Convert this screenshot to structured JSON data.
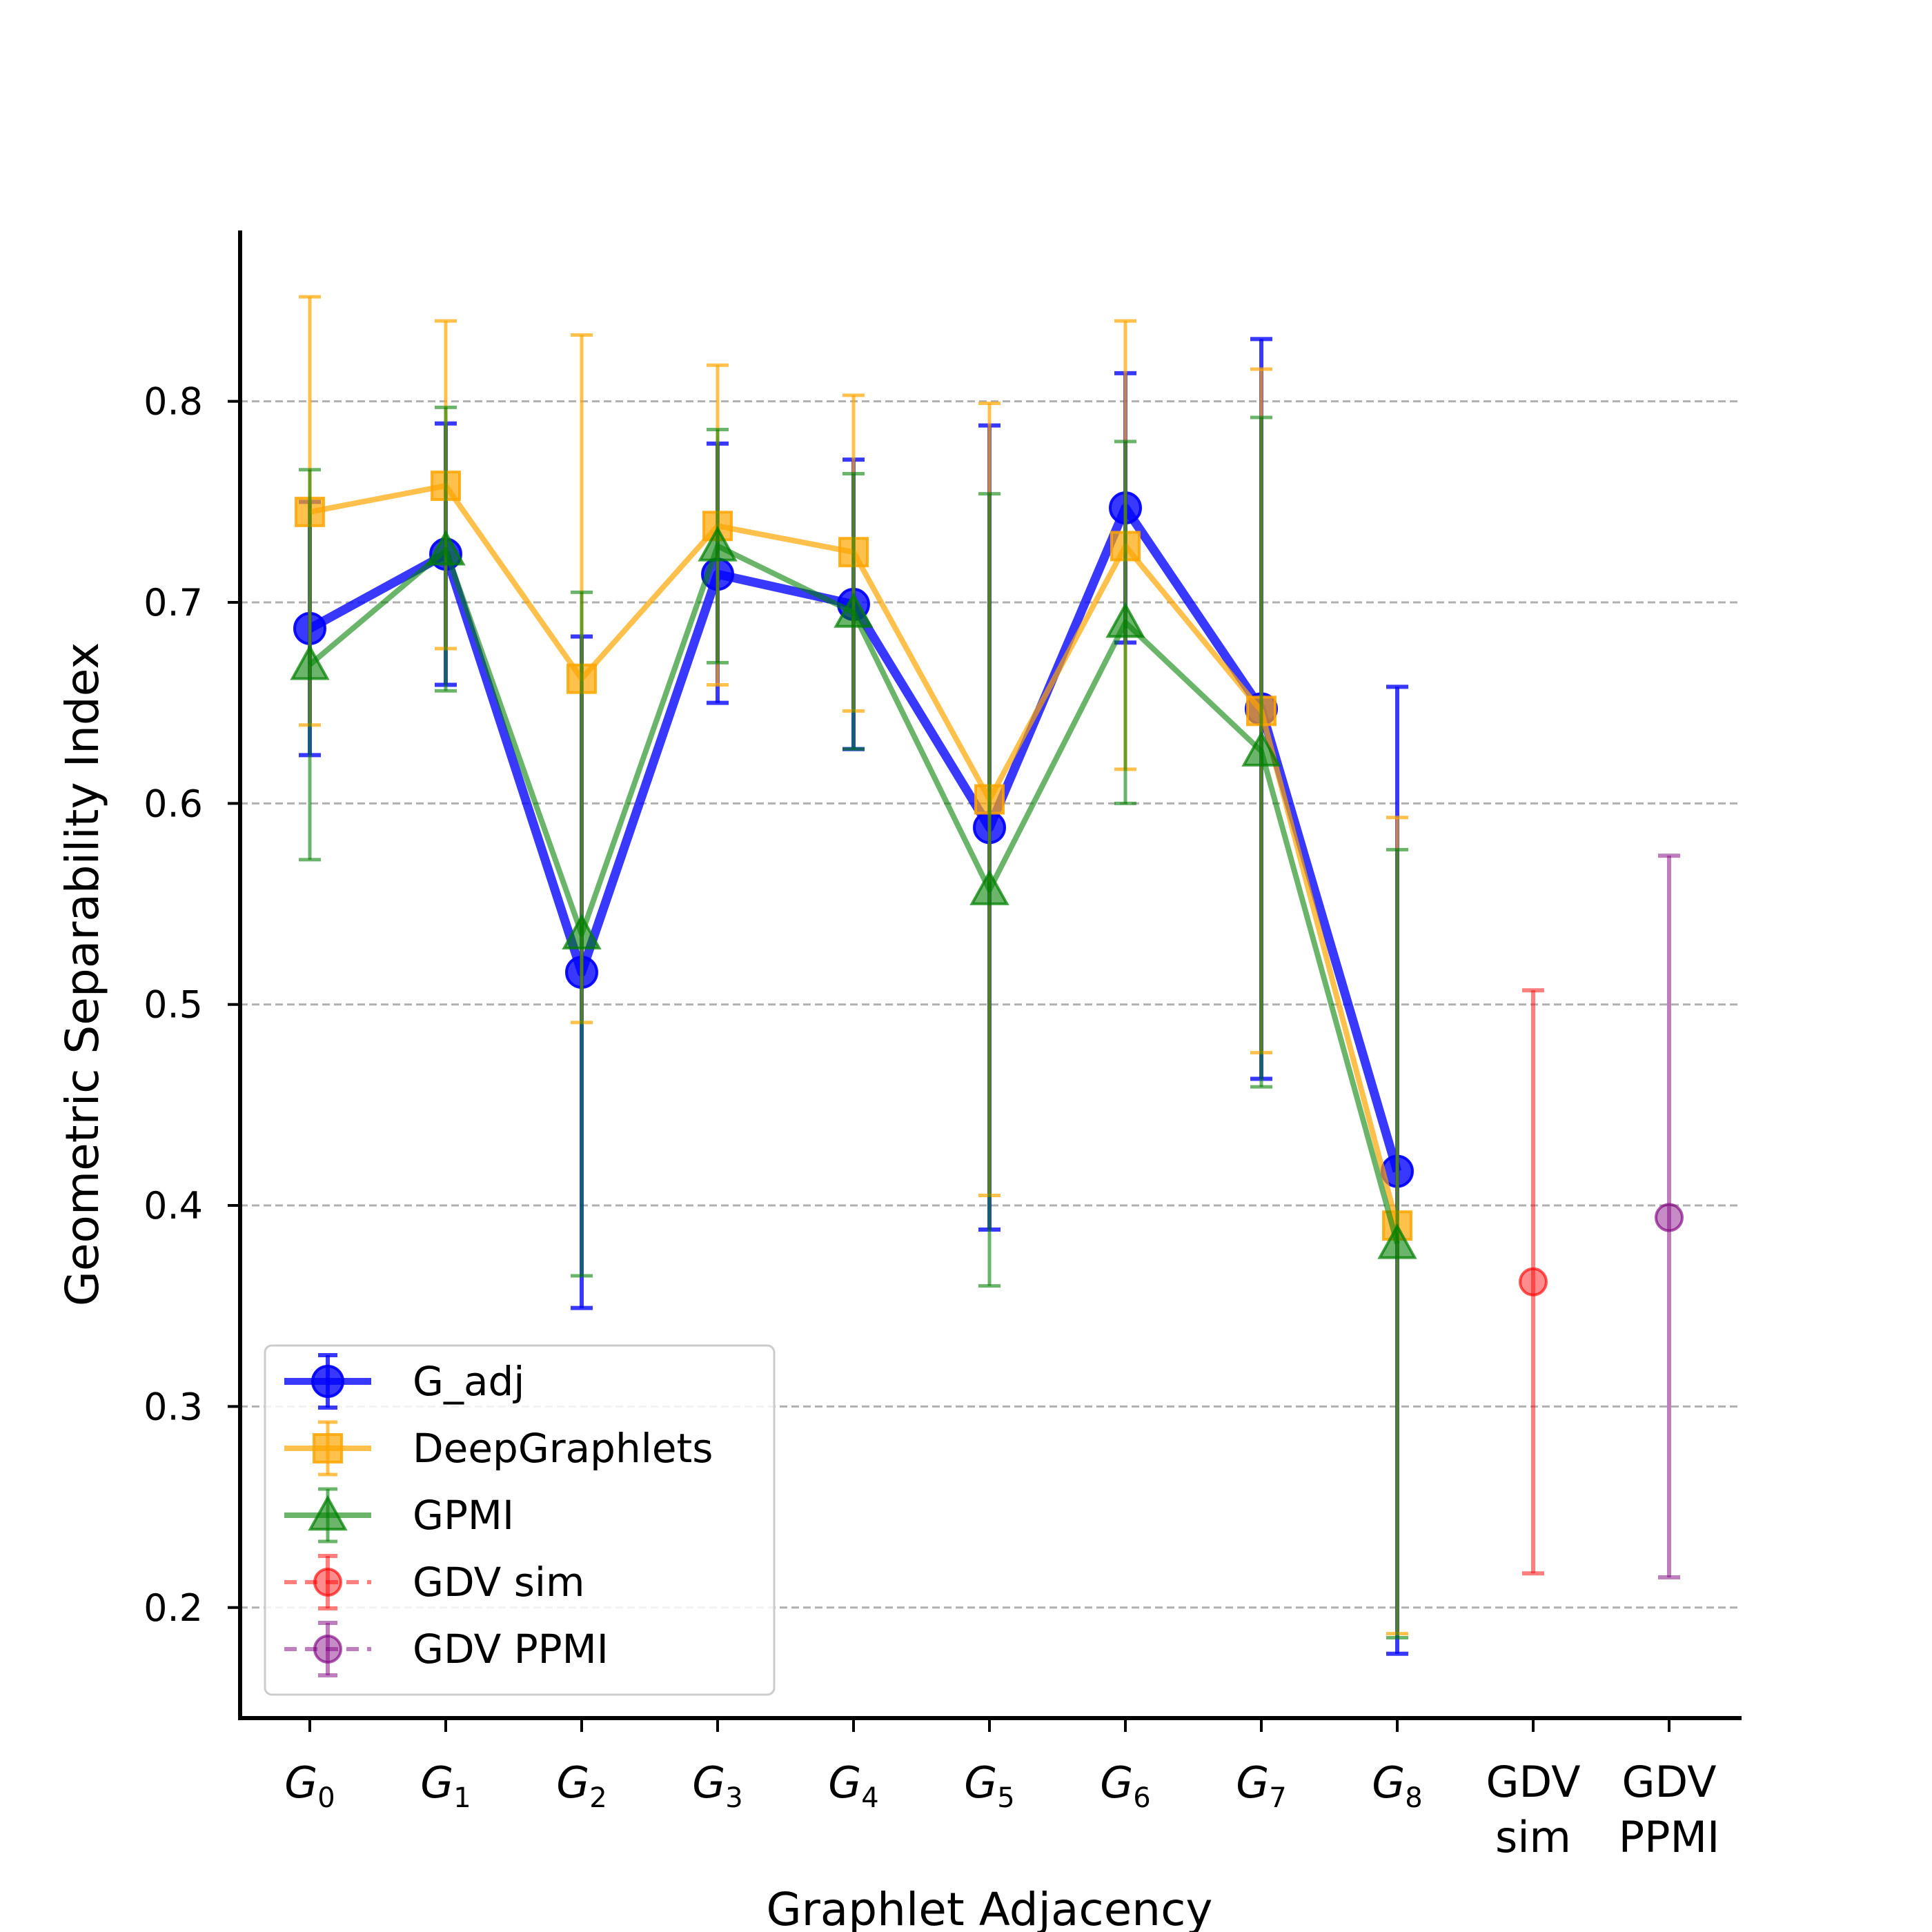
{
  "chart_data": {
    "type": "line",
    "xlabel": "Graphlet Adjacency",
    "ylabel": "Geometric Separability Index",
    "ylim": [
      0.145,
      0.885
    ],
    "yticks": [
      0.2,
      0.3,
      0.4,
      0.5,
      0.6,
      0.7,
      0.8
    ],
    "ytick_labels": [
      "0.2",
      "0.3",
      "0.4",
      "0.5",
      "0.6",
      "0.7",
      "0.8"
    ],
    "grid": "horizontal dashed",
    "legend_position": "lower-left",
    "categories": [
      {
        "main": "G",
        "sub": "0"
      },
      {
        "main": "G",
        "sub": "1"
      },
      {
        "main": "G",
        "sub": "2"
      },
      {
        "main": "G",
        "sub": "3"
      },
      {
        "main": "G",
        "sub": "4"
      },
      {
        "main": "G",
        "sub": "5"
      },
      {
        "main": "G",
        "sub": "6"
      },
      {
        "main": "G",
        "sub": "7"
      },
      {
        "main": "G",
        "sub": "8"
      },
      {
        "line1": "GDV",
        "line2": "sim"
      },
      {
        "line1": "GDV",
        "line2": "PPMI"
      }
    ],
    "series": [
      {
        "name": "G_adj",
        "color": "#0000ff",
        "marker": "circle",
        "x": [
          0,
          1,
          2,
          3,
          4,
          5,
          6,
          7,
          8
        ],
        "values": [
          0.687,
          0.724,
          0.516,
          0.714,
          0.699,
          0.588,
          0.747,
          0.647,
          0.417
        ],
        "err_low": [
          0.624,
          0.659,
          0.349,
          0.65,
          0.627,
          0.388,
          0.68,
          0.463,
          0.177
        ],
        "err_high": [
          0.75,
          0.789,
          0.683,
          0.779,
          0.771,
          0.788,
          0.814,
          0.831,
          0.658
        ]
      },
      {
        "name": "DeepGraphlets",
        "color": "#ffa500",
        "marker": "square",
        "x": [
          0,
          1,
          2,
          3,
          4,
          5,
          6,
          7,
          8
        ],
        "values": [
          0.745,
          0.758,
          0.662,
          0.738,
          0.725,
          0.602,
          0.728,
          0.646,
          0.39
        ],
        "err_low": [
          0.639,
          0.677,
          0.491,
          0.659,
          0.646,
          0.405,
          0.617,
          0.476,
          0.187
        ],
        "err_high": [
          0.852,
          0.84,
          0.833,
          0.818,
          0.803,
          0.799,
          0.84,
          0.816,
          0.593
        ]
      },
      {
        "name": "GPMI",
        "color": "#008000",
        "marker": "triangle",
        "x": [
          0,
          1,
          2,
          3,
          4,
          5,
          6,
          7,
          8
        ],
        "values": [
          0.669,
          0.726,
          0.535,
          0.728,
          0.695,
          0.557,
          0.69,
          0.626,
          0.381
        ],
        "err_low": [
          0.572,
          0.656,
          0.365,
          0.67,
          0.627,
          0.36,
          0.6,
          0.459,
          0.185
        ],
        "err_high": [
          0.766,
          0.797,
          0.705,
          0.786,
          0.764,
          0.754,
          0.78,
          0.792,
          0.577
        ]
      },
      {
        "name": "GDV sim",
        "color": "#ff0000",
        "marker": "circle",
        "x": [
          9
        ],
        "values": [
          0.362
        ],
        "err_low": [
          0.217
        ],
        "err_high": [
          0.507
        ]
      },
      {
        "name": "GDV PPMI",
        "color": "#800080",
        "marker": "circle",
        "x": [
          10
        ],
        "values": [
          0.394
        ],
        "err_low": [
          0.215
        ],
        "err_high": [
          0.574
        ]
      }
    ]
  }
}
